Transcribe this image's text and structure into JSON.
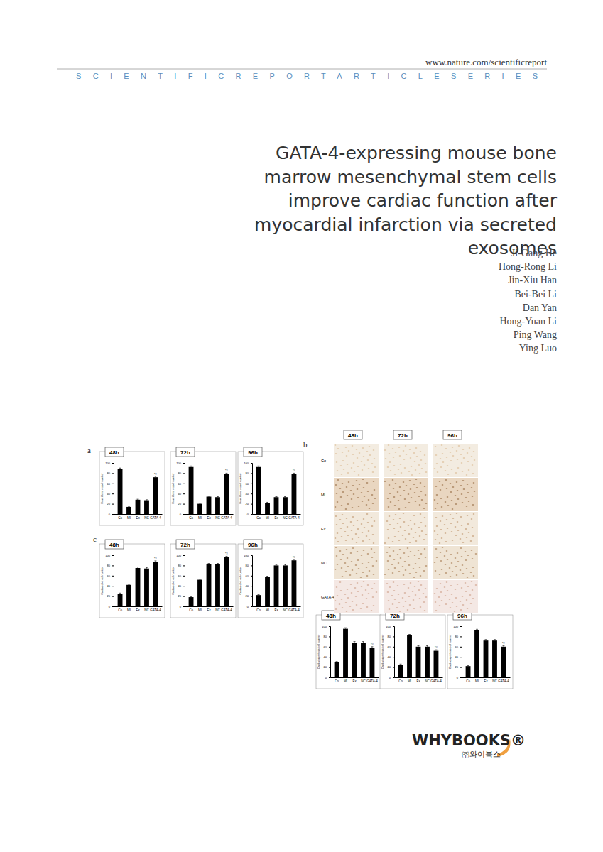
{
  "header": {
    "url": "www.nature.com/scientificreport",
    "series": "SCIENTIFICREPORTARTICLESERIES"
  },
  "title_lines": [
    "GATA-4-expressing mouse bone",
    "marrow mesenchymal stem cells",
    "improve cardiac function after",
    "myocardial infarction via secreted",
    "exosomes"
  ],
  "authors": [
    "Ji-Gang He",
    "Hong-Rong Li",
    "Jin-Xiu Han",
    "Bei-Bei Li",
    "Dan Yan",
    "Hong-Yuan Li",
    "Ping Wang",
    "Ying Luo"
  ],
  "panels": [
    {
      "label": "a"
    },
    {
      "label": "b",
      "micrographs": {
        "columns": [
          "48h",
          "72h",
          "96h"
        ],
        "rows": [
          "Co",
          "MI",
          "Ex",
          "NC",
          "GATA-4"
        ]
      }
    },
    {
      "label": "c"
    }
  ],
  "publisher": {
    "name": "WHYBOOKS®",
    "korean": "㈜와이북스"
  },
  "chart_data": [
    {
      "type": "bar",
      "title": "48h",
      "y_label": "Heart blood vessel number",
      "categories": [
        "Co",
        "MI",
        "Ex",
        "NC",
        "GATA-4"
      ],
      "values": [
        88,
        14,
        28,
        27,
        72
      ],
      "errors": [
        2,
        1,
        1,
        1,
        2
      ],
      "color": "#000000",
      "ylim": [
        0,
        100
      ],
      "yticks": [
        0,
        20,
        40,
        60,
        80,
        100
      ],
      "annotation": {
        "category": "GATA-4",
        "text": "*#"
      }
    },
    {
      "type": "bar",
      "title": "72h",
      "y_label": "Heart blood vessel number",
      "categories": [
        "Co",
        "MI",
        "Ex",
        "NC",
        "GATA-4"
      ],
      "values": [
        92,
        20,
        34,
        33,
        78
      ],
      "errors": [
        2,
        1,
        1,
        1,
        2
      ],
      "color": "#000000",
      "ylim": [
        0,
        100
      ],
      "yticks": [
        0,
        20,
        40,
        60,
        80,
        100
      ],
      "annotation": {
        "category": "GATA-4",
        "text": "*#"
      }
    },
    {
      "type": "bar",
      "title": "96h",
      "y_label": "Heart blood vessel number",
      "categories": [
        "Co",
        "MI",
        "Ex",
        "NC",
        "GATA-4"
      ],
      "values": [
        92,
        22,
        33,
        33,
        78
      ],
      "errors": [
        2,
        1,
        1,
        1,
        2
      ],
      "color": "#000000",
      "ylim": [
        0,
        100
      ],
      "yticks": [
        0,
        20,
        40,
        60,
        80,
        100
      ],
      "annotation": {
        "category": "GATA-4",
        "text": "*#"
      }
    },
    {
      "type": "bar",
      "title": "48h",
      "y_label": "Cardiac c-kit cell number",
      "categories": [
        "Co",
        "MI",
        "Ex",
        "NC",
        "GATA-4"
      ],
      "values": [
        25,
        42,
        75,
        74,
        87
      ],
      "errors": [
        1,
        1,
        2,
        2,
        2
      ],
      "color": "#000000",
      "ylim": [
        0,
        100
      ],
      "yticks": [
        0,
        20,
        40,
        60,
        80,
        100
      ],
      "annotation": {
        "category": "GATA-4",
        "text": "*#"
      }
    },
    {
      "type": "bar",
      "title": "72h",
      "y_label": "Cardiac c-kit cell number",
      "categories": [
        "Co",
        "MI",
        "Ex",
        "NC",
        "GATA-4"
      ],
      "values": [
        18,
        52,
        82,
        82,
        96
      ],
      "errors": [
        1,
        1,
        2,
        2,
        2
      ],
      "color": "#000000",
      "ylim": [
        0,
        100
      ],
      "yticks": [
        0,
        20,
        40,
        60,
        80,
        100
      ],
      "annotation": {
        "category": "GATA-4",
        "text": "*#"
      }
    },
    {
      "type": "bar",
      "title": "96h",
      "y_label": "Cardiac c-kit cell number",
      "categories": [
        "Co",
        "MI",
        "Ex",
        "NC",
        "GATA-4"
      ],
      "values": [
        22,
        58,
        80,
        80,
        90
      ],
      "errors": [
        1,
        1,
        2,
        2,
        2
      ],
      "color": "#000000",
      "ylim": [
        0,
        100
      ],
      "yticks": [
        0,
        20,
        40,
        60,
        80,
        100
      ],
      "annotation": {
        "category": "GATA-4",
        "text": "*#"
      }
    },
    {
      "type": "bar",
      "title": "48h",
      "y_label": "Cardiac apoptosis cell number",
      "categories": [
        "Co",
        "MI",
        "Ex",
        "NC",
        "GATA-4"
      ],
      "values": [
        30,
        95,
        68,
        68,
        58
      ],
      "errors": [
        1,
        2,
        2,
        2,
        2
      ],
      "color": "#000000",
      "ylim": [
        0,
        100
      ],
      "yticks": [
        0,
        20,
        40,
        60,
        80,
        100
      ],
      "annotation": {
        "category": "GATA-4",
        "text": "*#"
      }
    },
    {
      "type": "bar",
      "title": "72h",
      "y_label": "Cardiac apoptosis cell number",
      "categories": [
        "Co",
        "MI",
        "Ex",
        "NC",
        "GATA-4"
      ],
      "values": [
        25,
        82,
        60,
        60,
        52
      ],
      "errors": [
        1,
        2,
        2,
        2,
        2
      ],
      "color": "#000000",
      "ylim": [
        0,
        100
      ],
      "yticks": [
        0,
        20,
        40,
        60,
        80,
        100
      ],
      "annotation": {
        "category": "GATA-4",
        "text": "*#"
      }
    },
    {
      "type": "bar",
      "title": "96h",
      "y_label": "Cardiac apoptosis cell number",
      "categories": [
        "Co",
        "MI",
        "Ex",
        "NC",
        "GATA-4"
      ],
      "values": [
        22,
        92,
        72,
        72,
        60
      ],
      "errors": [
        1,
        2,
        2,
        2,
        2
      ],
      "color": "#000000",
      "ylim": [
        0,
        100
      ],
      "yticks": [
        0,
        20,
        40,
        60,
        80,
        100
      ],
      "annotation": {
        "category": "GATA-4",
        "text": "*#"
      }
    }
  ]
}
